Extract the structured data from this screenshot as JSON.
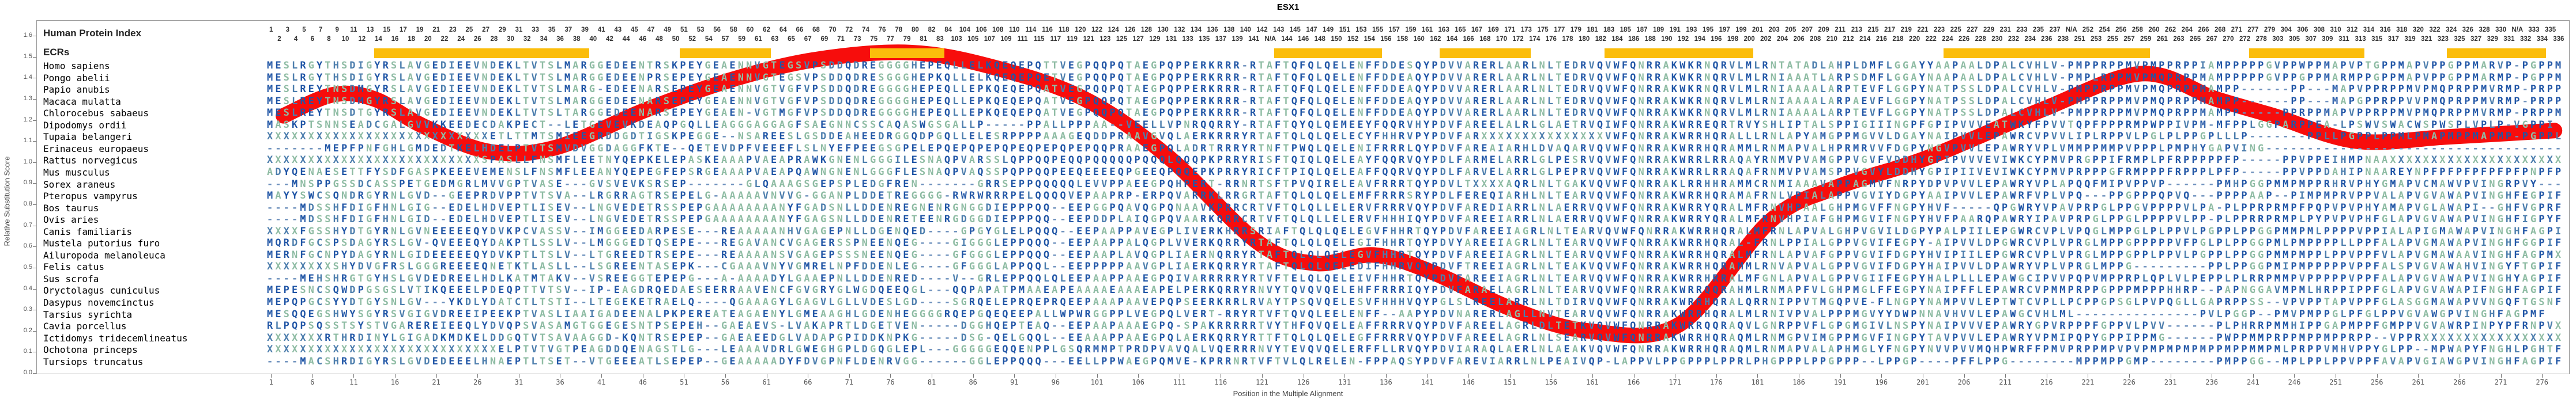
{
  "title": "ESX1",
  "y_axis": {
    "label": "Relative Substitution Score",
    "min": 0.0,
    "max": 1.6,
    "tick_step": 0.1
  },
  "x_axis": {
    "label": "Position in the Multiple Alignment",
    "tick_start": 1,
    "tick_step": 5
  },
  "header": {
    "row1_label": "Human Protein Index",
    "row2_label": "ECRs"
  },
  "human_index_ranges": [
    [
      1,
      54
    ],
    [
      56,
      84
    ],
    [
      103,
      111
    ],
    [
      114,
      142
    ],
    "N/A",
    [
      143,
      238
    ],
    "N/A",
    [
      251,
      268
    ],
    [
      270,
      272
    ],
    [
      277,
      279
    ],
    [
      303,
      331
    ],
    "N/A",
    [
      332,
      336
    ]
  ],
  "ecr_bars": [
    [
      14,
      39
    ],
    [
      51,
      62
    ],
    [
      75,
      83
    ],
    [
      143,
      155
    ],
    [
      163,
      173
    ],
    [
      183,
      200
    ],
    [
      224,
      259
    ],
    [
      277,
      313
    ],
    [
      324,
      334
    ]
  ],
  "colors": {
    "ecr_bar": "#FBBD0B",
    "curve": "#F70D0C",
    "border": "#9a9a9a",
    "index_text": "#333333",
    "residue_dark": "#2156A6",
    "residue_mid": "#4D7EAD",
    "residue_green": "#8FBCA4",
    "gap_dash": "#6D90BC"
  },
  "residue_color_classes": {
    "dark": "MPRKQFWYE",
    "mid": "LVIDHC",
    "green": "GASTN"
  },
  "chart_data": {
    "type": "line",
    "title": "ESX1",
    "xlabel": "Position in the Multiple Alignment",
    "ylabel": "Relative Substitution Score",
    "ylim": [
      0.0,
      1.6
    ],
    "xlim": [
      1,
      278
    ],
    "grid": false,
    "series": [
      {
        "name": "Relative Substitution Score",
        "x": [
          3,
          9,
          14,
          20,
          28,
          36,
          47,
          58,
          68,
          79,
          89,
          100,
          110,
          121,
          128,
          135,
          142,
          152,
          161,
          172,
          183,
          191,
          202,
          216,
          228,
          237,
          244,
          254,
          265,
          278
        ],
        "y": [
          1.22,
          1.32,
          1.3,
          1.17,
          1.05,
          1.07,
          1.25,
          1.4,
          1.49,
          1.52,
          1.45,
          1.3,
          1.03,
          0.62,
          0.52,
          0.56,
          0.48,
          0.3,
          0.2,
          0.23,
          0.72,
          0.88,
          1.02,
          1.25,
          1.42,
          1.3,
          1.22,
          1.1,
          1.12,
          1.15
        ]
      }
    ]
  },
  "alignment": {
    "species": [
      {
        "name": "Homo sapiens",
        "seq": "MESLRGYTHSDIGYRSLAVGEDIEEVNDEKLTVTSLMARGGEDEENTRSKPEYGEAENNVGTEGSVPSDDQDREGGGGHEPEQLLELKQEQEPQTTVEGPQQPQTAEGPQPPERKRRR-RTAFTQFQLQELENFFDDESQYPDVVARERLAARLNLTEDRVQVWFQNRRAKWKRNQRVLMLRNTATADLAHPLDMFLGGAYYAAPAALDPALCVHLV-PMPPRPPMVPMPPRPPIAMPPPPPGVPPWPPMAPVPTGPPMAPVPPGPPMARVP-PGPPM"
      },
      {
        "name": "Pongo abelii",
        "seq": "MESLRGYTHSDIGYRSLAVGEDIEEVNDEKLTVTSLMARGGEDEENPRSEPEYGEAENNVGTEGSVPSDDQDRESGGGHEPKQLLELKQEQEPQETVEGPQQPQTAEGPQPPERKRRR-RTAFTQFQLQELENFFDDEAQYPDVVARERLAARLNLTEDRVQVWFQNRRAKWKRNQRVLMLRNIAAATLARPSDMFLGGAYNAAPAALDPALCVHLV-PMPLRPPMVPMQPRPPMAMPPPPPGVPPGPPMARMPPGPPMAPVPPGPPMARMP-PGPPM"
      },
      {
        "name": "Papio anubis",
        "seq": "MESLREYTNSDMGYRSLAVGEDIEEVNDEKLTVTSLMARG-EDEENARSEPEYGEAENNVGTVGFVPSDDQDREGGGGHEPEQLLEPKQEQEPQATVEGPQQPQTAEGPQPPERKRRR-RTAFTQFQLQELENFFDDEAQYPDVVARERLAARLNLTEDRVQVWFQNRRAKWKRNQRVLMLRNIAAAALARPTEVFLGGPYNATPSSLDPALCVHLV-PMPPRPPMVPMQPRPPMAMPP------PP---MAPVPPRPPMVPMQPRPPMVRMP-PRPPM"
      },
      {
        "name": "Macaca mulatta",
        "seq": "MESLREYTNSDMGYRSLAVGEDIEEVNDEKLTVTSLMARGGEDEENARSEPEYGEAENNVGTVGFVPSDDQDREGGGGHEPEQLLEPKQEQEPQATVEGPQQPQTAEGPQPPERKRRR-RTAFTQFQLQELENFFDDEAQYPDVVARERLAARLNLTEDRVQVWFQNRRAKWKRNQRVLMLRNIAAAALARPAEVFLGGPYNATPSSLDPALCVHLV-PMPPRPPMVPMQPRPPMAMPP------PP---MAPGPPRPPVVPMQPRPPMVRMP-PRPPM"
      },
      {
        "name": "Chlorocebus sabaeus",
        "seq": "MESLREYTNSDTGYRSLAVGEDIEEVNDEKLTVTSLTARGGEDEENARSEPEYGEAEN-VGTMGFVPSDDQDREGGGGHEPEQLLEPKQEQEPQATVEGPQQPQTAEGPQPPERKRRR-RTAFTQFQLQELENFFDDEAQYPDVVARERLAARLNLTEDRVQVWFQNRRAKWKRNQRVLMLRNIAAAALARPTEVFLGGPYNATPSSLDPALCVHLV-PMPPRPPMVPMQPRPPMAMPP-----PPRPPMAPVPPRPPMVPMQPRPPMVRMP-PRPPM"
      },
      {
        "name": "Dipodomys ordii",
        "seq": "MASKPTSNNSEADCGALGVVKKEEDECDAKPECT--LETGEVEVKDEAQPGQLLEAGGGAGGAGFSAEGNNCSSCAQASWGSGALLP-----PPALLPPPAA--VEELLVPNRQQRRY-RTAFTQYQLQEMEEYFQQRVHYPDVFAREELALRLGLAETRVQIWFQNRRAKWRREQRTRVYSHLIPTALSPPIGIIINGPFGPIPVVVEATWKYFPVVTQPFPPPRMPWPPIVPM-MFPPLGGPARPPEA-LPSWVSWACWSPWSPLVPLP-VGPPI"
      },
      {
        "name": "Tupaia belangeri",
        "seq": "XXXXXXXXXXXXXXXXXXXXXXXXXXXETLTTMTSMIEEGRDDGDTIGSKPEGGE--NSAREESLGSDDEAHEEDRGGQDPGQLLELESRPPPPAAAGEQDDPRAAVGVQLAERKRRRYRTAFTQLQLQELECYFHHRVPYPDVFARXXXXXXXXXXXXXXXVWFQNRRAKWRRHQRALLLRNLAPYAMGPPMGVVLDGAYNAIPVVLEPAWRCVPVVLIPLRPPVLPGLPLPPGPLLLP-------PPLLPGPPLPPMLPMAPMPPMAPMP-PGPPL"
      },
      {
        "name": "Erinaceus europaeus",
        "seq": "-------MEPFPNFGHLGMDEDTKELHDELPTVTSMVDVGGDAGGFKTE--QETEVDPFVEEEFLSLNYEFPEEGSGPELEPQEPQPEPQPEQPEPQPEPQQPRAAEGPQLADRTRRRYRTNFTPWQLQELENIFRRRLQYPDVFAREAIARHLDVAQARVQVWFQNRRAKWRRHQRAMMLRNMAPVALHPRMRVVFDGPYNGVPVVLEPAWRYVPLVMMPPMMPVPPPLPMPHYGAPVING------------------------------------"
      },
      {
        "name": "Rattus norvegicus",
        "seq": "XXXXXXXXXXXXXXXXXXXXXXXXXXSPASLLFNSMFLEETNYQEPKELEPASKEAAAPVAEAPRAWKGNENLGGGILESNAQPVARSSLQPPQQPEQQPQQQQQPQQQLQQQPKPRRYRISFTQIQLQELEAYFQQRVQYPDLFARMELARRLGLPESRVQVWFQNRRAKWRRLRRAQAYRNMVPVAMGPPVGVFVDDHYGPIPVVVEVIWKCYPMVPRGPPIFRMPLPFRPPPPPFP-----PPVPPEIHMPNAAXXXXXXXXXXXXXXXXXXXXX"
      },
      {
        "name": "Mus musculus",
        "seq": "ADYQENAESETTFYSDFGASPKEEEVEMENSLFNSMFLEEANYQEPEGFEPSRGEAAAPVAEAPQAWNGNENLGGGFLESNAQPVAQSSPQPPQQPEEQEEEEQPGEEQPQQEPKPRRYRICFTPIQLQELEAFFQQRVQYPDLFARVELARRLGLPEPRVQVWFQNRRAKWRRLRRAQAFRNMVPVAMSPPVGVYLDDHYGPIPIIVEVIWKCYPMVPRPPPGFRMPPPFRPPPLPFP-----PPVPPDAHIPNAAREYNPFPFPFPFPFPFPNPFP"
      },
      {
        "name": "Sorex araneus",
        "seq": "---MNSPPGSSDCASSPETGEDMGRLMVVGPTVASE---GVSVEVKSRSEP-------GLQAAAGSGEPSPLEDGFREN-------GRRSEPPQQQQQLEVVPPAEEGPQHPERT-RRNRTSFTPVQIRELEAVFRRRTQYPDVLTXXXXAQRLNLTGAKVQVWFQNRRAKLRRHHRAMMCRNMIAAAVAPPAGMVFNRPYDPVPVVLEPAWRYVPLAPQQFMIPVPPVP------PMHPGGPMMPMPPRHRVPHYGMAPVCMAWVPVINGRPVY---"
      },
      {
        "name": "Pteropus vampyrus",
        "seq": "MAYYSWCSQNDRGYRNLGVD--GEEPRDVPPTVTSVA--LRGRRAGTRSEPELG-AAAAAVNVVG-GGANPLDDETREGGGG-RWRWRRRPELQQQQVEPAAPRP-ERPQVARRKLRRGRTAFTQLQLQELEMFFRRRSRYPDLFEREQIARHLNLTEARVQVWFQNRRAKWRRHQRAMAFRNLVPIALAPPVGVIYDGPYAAIPVVLEPAWRFVPLVPQ---PPGPPPQPVQ---PPPPAAP--PIMPMPRVPPVALAPVGVAWAPVINGHFEGPIF"
      },
      {
        "name": "Bos taurus",
        "seq": "----MDSSHFDIGFHNLGIG--EDELHDVEPTLISEV--LNGVEDETRSSPEPGAAAAAAAANYFGADSNLLDDENREGNENRGNGGDIEPPPQQ--EEPGGPQAVQGPQNAAVKPRRCRTVFTQLQLLELERVFRRRVQYPDVFAREDIARRLNLAERRVQVWFQNRRAKWRRYQRALMFRNVHPAALGHPMGVFFNGPYHVF-----QPGWRYVPAVPRPGLPPGVPPPPVLPA-PLPPRPRMPFPQPVPVPHYAMAPVGLAWAPI--GHFVGPRF"
      },
      {
        "name": "Ovis aries",
        "seq": "----MDSSHFDIGFHNLGID--EDELHDVEPTLISEV--LNGVEDETRSSPEPGAAAAAAAANYFGAGSNLLDDENRETEENRGDGGDIEPPPQQ--EEPDDPLAIQGPQVAARKQRRCRTVFTQLQLLELERVFHHHIQYPDVFAREEIARRLNLAERRVQVWFQNRRAKWRRYQRALMFRNVHPIAFGHPMGVIFNGPYHVFPAARQPAWRYIPAVPRPGLPPGLPPPPVLPP-PLPPRRPRMPLPYPVPVPHFGLAPVGVAWAPVINGHFIGPYF"
      },
      {
        "name": "Canis familiaris",
        "seq": "XXXXFGSSHYDTGYRNLGVNEEEEEQYDVKPCVASSV--IMGGEEDARPESE---REAAAAANHVGAGEPNLLDGENQED----GPGYGLELPQQQ--EEPAAPPAVEGPLIVERKHRRSRIAFTQLQLQELEGVFHHRTQYPDVFAREEIAGRLNLTEARVQVWFQNRRAKWRRHQRALMFRNLAPVALGHPVGVILDGPYPALPIILEPGWRCVPLVPQGLMPPGLPLPPVLPGPPLPPGGPMMPMLPPPPVPPIALAPIGMAWAPVINGHFAGPIF"
      },
      {
        "name": "Mustela putorius furo",
        "seq": "MQRDFGCSPSDAGYRSLGV-QVEEEQYDAKPTLSSLV--LMGGGEDTQSEPE---REGAVANCVGAGERSSPNEENQEG----GIGGGLEPPQQQ--EEPAAPPALQGPLVVERKQRRYRTAFTQLQLQELEGIFHHRTQYPDVYAREEIAGRLNLTEARVQVWFQNRRAKWRRHQRAL-FRNLPPIALGPPVGVIFEGPY-AIPVVLDPGWRCVPLVPRGLMPPGPPPPPVFPGLPLPPGGPMLPMPPPPLLPPFALAPVGMAWAPVINGHFGGPIF"
      },
      {
        "name": "Ailuropoda melanoleuca",
        "seq": "MERNFGCNPYDAGYRNLGIDEEEEEQYDVKPTLTSLV--LTGREEDTRSEPE---REAAAANSVGAGEPSSSNEENQEG----GFGGGLEPPQQQ--EEPAAPLAVQGPLIAERNQRRYRTAFTQLQLQELEGVFHHRTQYPDVFAREEIAGRLNLTEARVQVWFQNRRAKWRRHQRALMFRNLAPVAFGPPVGVIFDGPYHVIPIILEPGWRCVPLVPRGLMPPGPPLPPVLPGPPLPPGGPMMPMPPLPPVPPFVLAPVGMAWAAVINGHFAGPMX"
      },
      {
        "name": "Felis catus",
        "seq": "XXXXXXXXSHYDVGFRSLGGGREEEEQNETKTLASLL--LSGREENTASEPK---CGAAAVNYVGMRELNPFDDENLEG----GFGGGLAPPQQL--EEPPPPPAAVGPLIAERKQRRYRTAFTQLQLQELEDIFHHRVQYPDVFTREEIAGRLNLTEAKVQVWFQNRRAKWRRHQRAMMLRNVAPVALGPPVGVIFDGPYHAIPVVLDPAWRYVPLVPRGLMPPG---------PPLPPGGPMIPMPPPPPVPPFALSPVGVAWAHVINGYFTGPIF"
      },
      {
        "name": "Sus scrofa",
        "seq": "----MEHSHRGTGYHSLGVDEDREELHDLKATMTAKV--VSREEGGTEPEPG---A-AAAADYLGAAEPNLLDDENRED----V--GRLEPPQQLQLEEPAAPPAAEGPQIVARRRRRYRTVFTELQLQELEIVFHHRTQYPDVFAREEIAGRLNLTEARVQVWFQNRRAKWRRHRRALMFGNLAPVALGPPVGIIFEGPYHALPLLLEPAWGCIPVVPQPVMPPRPLQPLVLPEPPLPLRRPMMPVPPPPPVPPFALAPVGVAWAPVINGHYAGPIF"
      },
      {
        "name": "Oryctolagus cuniculus",
        "seq": "MEPESNCSQWDPGSGSLVTIKQEEELPDEQPTTVTSV--IP-EAGDRQEDAESEERRAAVENCFGVGRYGLWGDQEEQGL---QQPAPATPMAAEAPEAAAAEAAAEAPELPERKQRRYRNVYTQVQVQELEHFFRRRIQYPDVFARAELAGRLNLTEARVQVWFQNRRAKWRRQQRAHMLRNMAPFVLGHPMGLFFEGPYNAIPFFLEPAWRCVPMMPRPPGPPPMPPPHHRP--PAPNGGAVMPMLHRPPIPPFGLAPVGVAWAPIFNGHFAGPIF"
      },
      {
        "name": "Dasypus novemcinctus",
        "seq": "MEPQPGCSYYDTGYSNLGV---YKDLYDATCTLTSTI--LTEGEKETRAELQ----QGAAAGYLGAGVLGLLVDESLGD----SGRQELEPRQEPRQEEPAAAPAAVEPQPSEERKRRLRVAYTPSQVQELESVFHHHVQYPGLSLREELARRLNLTDIRVQVWFQNRRAKWRRHQRALQRRNIPPVTMGQPVE-FLNGPYNAMPVVLEPTWTCVPLLPCPPGPSGLPVPQGLLGAPRPPSS--VPVPPTAPVPPFGLASGGMAWAPVVNGQFTGSNF"
      },
      {
        "name": "Tarsius syrichta",
        "seq": "MESQQEGSHWYSGYRSVGIGVDREEIPEEKPTVASLIAAIGADEENALPKPEREATEAGAENYLGMEAAGHLGDENHEGGGGRQEPGQEQEEPALLWPWRGGPPLVEGPQLVERT-RRYRTVFTQVQLEELENFF--AAPYPDVNARERLAGLLNVTEARVQVWFQNRRAKWRRHQRALMLRNIVPVALPPPMGVYYDWPNNAVHVVLEPAWGCVHLML---------------PVLPGGP--PMVPMPPGLPFGLPPVGVAWGPVINGHFAGPMF"
      },
      {
        "name": "Cavia porcellus",
        "seq": "RLPQPSQSSTSYSTVGAREREIEEQLYDVQPSVASAMGTGGEGESNTPSEPEH--GAEAEVS-LVAKAPRTLDGETVEN-----DGGHQEPTEAQ--EEPAAPAAAEGPQ-SPAKRRRRRTVYTHFQVQELEAFFRRRVQYPDVFAREELAGRLDLTETKVQVWFQNRRAKWRRQQRAQVLGNRPPVFLGPGMGIVLNSPYNAIPVVVEPAWRYGPVRPPPFGPPVLPVV------PLPHRRPMMHIPPGAPMPPFGMPPVGVAWRPINPYPFRNPVX"
      },
      {
        "name": "Ictidomys tridecemlineatus",
        "seq": "XXXXXXXRTHRDINYLGIGADKMDKELDDGQTVTSAVAAGGD-KQNTRSEPEP--GAEAEEDGLVADAPGPIDDKNPKG-----DSG-QELGQQL--EEAAAPPAAEGPQLAERKQRRYRTTFTQLQLQELEGFFRRRVQYPDVFAREELAGRLNLSEARVQVWFQNRRAKWRRHQRAQMLRNMGPVIMGPPMGVFINGPYTAVPVVLEPAWRYVPMIPQPYGPPIPPMG------PWPPMMPRPPMPPMPPRPP--VPPRXXXXXXXXXXXXXXXXX"
      },
      {
        "name": "Ochotona princeps",
        "seq": "XXXXXXXXXXXXXXXXXXXXXXXXXXXXELPTVTVGTPEAGDDQENAGSTLG---LEAAAVDRLGWEGHGPLDGQGLEPL---GGGGGEQQENPPLGSQRMMPTPRDPVAVQALVQERRRNVYTEVQVQELERFFLLRVQYPDVIARAQLAERLNLAEAKVQVWFQNRRAKWRRHQRAQMLRNMAPVALAPHMGLYFNGPYNVVPVVMQHPWRFFPMVPRPPMPVPVPMPMPMPMPPMPPMMPMLPRPPVMHVPPYGLPP--MPWAPYFNGHLPGHTF"
      },
      {
        "name": "Tursiops truncatus",
        "seq": "----MACSHRDIGYRSLGVDEDEEELHNAEPTLTSET--VTGEEEATLSEPEP--GEAAAAADYFDVGPNFLDENRVGG------GGLEPPQQQ---EELLPPWAEGPQMVE-KPRRNRTVFTVLQLRELEN-FPPAQSYPDVFAREVIARRLNLPEAIVQP-LAPPVLPPGPPPLPPRLPHGPPPLPPGPPP--LPPGP----PFFLPPG--------MPPMPPGMP--------PMPPGG--MPLPPLPPVPPFAVAPVGIAWGPVINGHFAGPIF"
      }
    ]
  }
}
